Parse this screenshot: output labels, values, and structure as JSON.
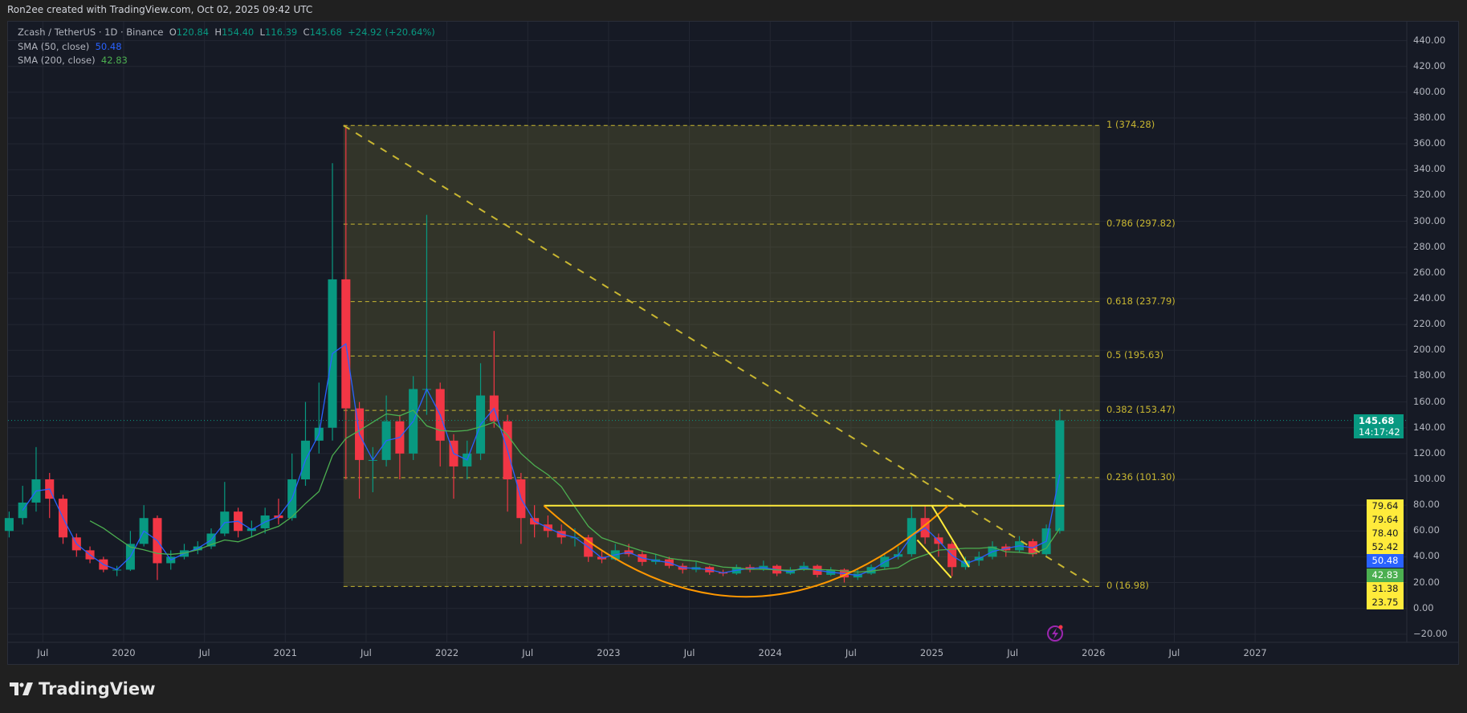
{
  "header": "Ron2ee created with TradingView.com, Oct 02, 2025 09:42 UTC",
  "legend": {
    "symbol": "Zcash / TetherUS · 1D · Binance",
    "o_label": "O",
    "o": "120.84",
    "h_label": "H",
    "h": "154.40",
    "l_label": "L",
    "l": "116.39",
    "c_label": "C",
    "c": "145.68",
    "change": "+24.92 (+20.64%)",
    "sma50_label": "SMA (50, close)",
    "sma50": "50.48",
    "sma200_label": "SMA (200, close)",
    "sma200": "42.83"
  },
  "current_price": {
    "price": "145.68",
    "countdown": "14:17:42"
  },
  "price_tags": [
    {
      "v": "79.64",
      "color": "#ffeb3b"
    },
    {
      "v": "79.64",
      "color": "#ffeb3b"
    },
    {
      "v": "78.40",
      "color": "#ffeb3b"
    },
    {
      "v": "52.42",
      "color": "#ffeb3b"
    },
    {
      "v": "50.48",
      "color": "#2962ff"
    },
    {
      "v": "42.83",
      "color": "#4caf50"
    },
    {
      "v": "31.38",
      "color": "#ffeb3b"
    },
    {
      "v": "23.75",
      "color": "#ffeb3b"
    }
  ],
  "brand": "TradingView",
  "colors": {
    "up": "#089981",
    "down": "#f23645",
    "sma50": "#2962ff",
    "sma200": "#4caf50",
    "fib": "#c8b631",
    "drawing": "#ffeb3b",
    "arc": "#ff9800",
    "background": "#161a25"
  },
  "icons": [
    "tradingview-logo-icon",
    "lightning-alert-icon"
  ],
  "chart_data": {
    "type": "candlestick",
    "interval_note": "monthly approximation of daily candles",
    "start_month": "2019-04",
    "ohlc": [
      [
        60,
        75,
        55,
        70
      ],
      [
        70,
        95,
        65,
        82
      ],
      [
        82,
        125,
        75,
        100
      ],
      [
        100,
        105,
        70,
        85
      ],
      [
        85,
        88,
        50,
        55
      ],
      [
        55,
        58,
        40,
        45
      ],
      [
        45,
        48,
        35,
        38
      ],
      [
        38,
        40,
        28,
        30
      ],
      [
        30,
        33,
        25,
        30
      ],
      [
        30,
        60,
        29,
        50
      ],
      [
        50,
        80,
        48,
        70
      ],
      [
        70,
        72,
        22,
        35
      ],
      [
        35,
        45,
        30,
        40
      ],
      [
        40,
        50,
        38,
        45
      ],
      [
        45,
        52,
        42,
        48
      ],
      [
        48,
        62,
        46,
        58
      ],
      [
        58,
        98,
        56,
        75
      ],
      [
        75,
        78,
        55,
        60
      ],
      [
        60,
        68,
        55,
        62
      ],
      [
        62,
        78,
        58,
        72
      ],
      [
        72,
        85,
        65,
        70
      ],
      [
        70,
        120,
        68,
        100
      ],
      [
        100,
        160,
        95,
        130
      ],
      [
        130,
        175,
        120,
        140
      ],
      [
        140,
        345,
        130,
        255
      ],
      [
        255,
        374,
        100,
        155
      ],
      [
        155,
        160,
        85,
        115
      ],
      [
        115,
        125,
        90,
        115
      ],
      [
        115,
        165,
        110,
        145
      ],
      [
        145,
        150,
        100,
        120
      ],
      [
        120,
        180,
        115,
        170
      ],
      [
        170,
        305,
        150,
        170
      ],
      [
        170,
        175,
        110,
        130
      ],
      [
        130,
        135,
        85,
        110
      ],
      [
        110,
        130,
        100,
        120
      ],
      [
        120,
        190,
        115,
        165
      ],
      [
        165,
        215,
        140,
        145
      ],
      [
        145,
        150,
        75,
        100
      ],
      [
        100,
        105,
        50,
        70
      ],
      [
        70,
        80,
        55,
        65
      ],
      [
        65,
        72,
        55,
        60
      ],
      [
        60,
        65,
        50,
        55
      ],
      [
        55,
        62,
        48,
        55
      ],
      [
        55,
        57,
        36,
        40
      ],
      [
        40,
        45,
        35,
        38
      ],
      [
        38,
        50,
        37,
        45
      ],
      [
        45,
        50,
        40,
        42
      ],
      [
        42,
        45,
        33,
        36
      ],
      [
        36,
        42,
        34,
        38
      ],
      [
        38,
        40,
        31,
        33
      ],
      [
        33,
        35,
        27,
        30
      ],
      [
        30,
        36,
        28,
        32
      ],
      [
        32,
        33,
        26,
        28
      ],
      [
        28,
        30,
        25,
        27
      ],
      [
        27,
        34,
        26,
        32
      ],
      [
        32,
        34,
        28,
        30
      ],
      [
        30,
        37,
        29,
        33
      ],
      [
        33,
        34,
        25,
        27
      ],
      [
        27,
        32,
        26,
        30
      ],
      [
        30,
        36,
        29,
        33
      ],
      [
        33,
        34,
        24,
        26
      ],
      [
        26,
        32,
        25,
        30
      ],
      [
        30,
        31,
        20,
        24
      ],
      [
        24,
        30,
        22,
        27
      ],
      [
        27,
        34,
        26,
        32
      ],
      [
        32,
        42,
        30,
        40
      ],
      [
        40,
        48,
        38,
        42
      ],
      [
        42,
        80,
        40,
        70
      ],
      [
        70,
        80,
        50,
        55
      ],
      [
        55,
        58,
        40,
        50
      ],
      [
        50,
        52,
        25,
        32
      ],
      [
        32,
        40,
        30,
        37
      ],
      [
        37,
        44,
        33,
        40
      ],
      [
        40,
        52,
        38,
        48
      ],
      [
        48,
        50,
        40,
        45
      ],
      [
        45,
        56,
        43,
        52
      ],
      [
        52,
        54,
        40,
        42
      ],
      [
        42,
        65,
        40,
        62
      ],
      [
        60,
        154.4,
        58,
        145.68
      ]
    ],
    "y_ticks": [
      "440.00",
      "420.00",
      "400.00",
      "380.00",
      "360.00",
      "340.00",
      "320.00",
      "300.00",
      "280.00",
      "260.00",
      "240.00",
      "220.00",
      "200.00",
      "180.00",
      "160.00",
      "140.00",
      "120.00",
      "100.00",
      "80.00",
      "60.00",
      "40.00",
      "20.00",
      "0.00",
      "−20.00"
    ],
    "ylim": [
      -20,
      440
    ],
    "x_ticks": [
      {
        "label": "Jul",
        "t": 2019.5
      },
      {
        "label": "2020",
        "t": 2020
      },
      {
        "label": "Jul",
        "t": 2020.5
      },
      {
        "label": "2021",
        "t": 2021
      },
      {
        "label": "Jul",
        "t": 2021.5
      },
      {
        "label": "2022",
        "t": 2022
      },
      {
        "label": "Jul",
        "t": 2022.5
      },
      {
        "label": "2023",
        "t": 2023
      },
      {
        "label": "Jul",
        "t": 2023.5
      },
      {
        "label": "2024",
        "t": 2024
      },
      {
        "label": "Jul",
        "t": 2024.5
      },
      {
        "label": "2025",
        "t": 2025
      },
      {
        "label": "Jul",
        "t": 2025.5
      },
      {
        "label": "2026",
        "t": 2026
      },
      {
        "label": "Jul",
        "t": 2026.5
      },
      {
        "label": "2027",
        "t": 2027
      }
    ],
    "fib_retracement": {
      "from_date": "2021-05",
      "to_date": "2026-01",
      "levels": [
        {
          "label": "1 (374.28)",
          "level": 1,
          "price": 374.28
        },
        {
          "label": "0.786 (297.82)",
          "level": 0.786,
          "price": 297.82
        },
        {
          "label": "0.618 (237.79)",
          "level": 0.618,
          "price": 237.79
        },
        {
          "label": "0.5 (195.63)",
          "level": 0.5,
          "price": 195.63
        },
        {
          "label": "0.382 (153.47)",
          "level": 0.382,
          "price": 153.47
        },
        {
          "label": "0.236 (101.30)",
          "level": 0.236,
          "price": 101.3
        },
        {
          "label": "0 (16.98)",
          "level": 0,
          "price": 16.98
        }
      ]
    },
    "trendline": {
      "from": {
        "t": 2021.36,
        "price": 374.28
      },
      "to": {
        "t": 2025.99,
        "price": 18.5
      }
    },
    "neckline": {
      "from_t": 2022.6,
      "to_t": 2025.82,
      "price": 79.64
    },
    "rounded_bottom": {
      "from_t": 2022.6,
      "to_t": 2025.1,
      "bottom_price": 9
    },
    "wedge_lines": [
      {
        "from": {
          "t": 2025.0,
          "price": 79.64
        },
        "to": {
          "t": 2025.23,
          "price": 32
        }
      },
      {
        "from": {
          "t": 2024.91,
          "price": 53
        },
        "to": {
          "t": 2025.12,
          "price": 23.75
        }
      }
    ]
  }
}
